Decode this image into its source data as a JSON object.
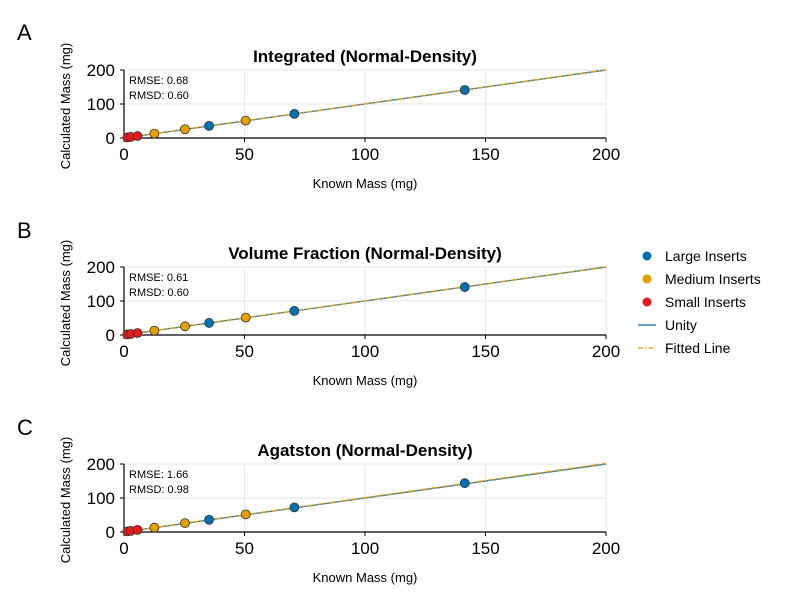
{
  "panels": [
    "A",
    "B",
    "C"
  ],
  "colors": {
    "large": "#0072b2",
    "medium": "#e69f00",
    "small": "#e41a1c",
    "unity": "#2c7fb8",
    "fitted": "#e69f00",
    "grid": "#e6e6e6",
    "axis": "#000000"
  },
  "legend": {
    "position": "right",
    "items": [
      {
        "label": "Large Inserts",
        "kind": "marker",
        "color": "#0072b2"
      },
      {
        "label": "Medium Inserts",
        "kind": "marker",
        "color": "#e69f00"
      },
      {
        "label": "Small Inserts",
        "kind": "marker",
        "color": "#e41a1c"
      },
      {
        "label": "Unity",
        "kind": "line",
        "color": "#2c7fb8"
      },
      {
        "label": "Fitted Line",
        "kind": "dashdot",
        "color": "#e69f00"
      }
    ]
  },
  "chart_data": [
    {
      "type": "scatter",
      "panel": "A",
      "title": "Integrated (Normal-Density)",
      "xlabel": "Known Mass (mg)",
      "ylabel": "Calculated Mass (mg)",
      "xlim": [
        0,
        200
      ],
      "ylim": [
        0,
        200
      ],
      "xticks": [
        0,
        50,
        100,
        150,
        200
      ],
      "yticks": [
        0,
        100,
        200
      ],
      "grid": true,
      "stats": [
        "RMSE: 0.68",
        "RMSD: 0.60"
      ],
      "series": [
        {
          "name": "Large Inserts",
          "x": [
            35.3,
            70.7,
            141.4
          ],
          "y": [
            35.6,
            71.0,
            141.2
          ]
        },
        {
          "name": "Medium Inserts",
          "x": [
            12.6,
            25.3,
            50.5
          ],
          "y": [
            12.8,
            25.8,
            51.0
          ]
        },
        {
          "name": "Small Inserts",
          "x": [
            1.4,
            2.8,
            5.6
          ],
          "y": [
            1.6,
            3.1,
            5.8
          ]
        },
        {
          "name": "Unity",
          "x": [
            0,
            200
          ],
          "y": [
            0,
            200
          ]
        },
        {
          "name": "Fitted Line",
          "x": [
            0,
            200
          ],
          "y": [
            0.2,
            200.4
          ]
        }
      ]
    },
    {
      "type": "scatter",
      "panel": "B",
      "title": "Volume Fraction (Normal-Density)",
      "xlabel": "Known Mass (mg)",
      "ylabel": "Calculated Mass (mg)",
      "xlim": [
        0,
        200
      ],
      "ylim": [
        0,
        200
      ],
      "xticks": [
        0,
        50,
        100,
        150,
        200
      ],
      "yticks": [
        0,
        100,
        200
      ],
      "grid": true,
      "stats": [
        "RMSE: 0.61",
        "RMSD: 0.60"
      ],
      "series": [
        {
          "name": "Large Inserts",
          "x": [
            35.3,
            70.7,
            141.4
          ],
          "y": [
            35.5,
            70.9,
            141.0
          ]
        },
        {
          "name": "Medium Inserts",
          "x": [
            12.6,
            25.3,
            50.5
          ],
          "y": [
            12.9,
            25.6,
            51.1
          ]
        },
        {
          "name": "Small Inserts",
          "x": [
            1.4,
            2.8,
            5.6
          ],
          "y": [
            1.7,
            3.0,
            5.9
          ]
        },
        {
          "name": "Unity",
          "x": [
            0,
            200
          ],
          "y": [
            0,
            200
          ]
        },
        {
          "name": "Fitted Line",
          "x": [
            0,
            200
          ],
          "y": [
            0.1,
            200.3
          ]
        }
      ]
    },
    {
      "type": "scatter",
      "panel": "C",
      "title": "Agatston (Normal-Density)",
      "xlabel": "Known Mass (mg)",
      "ylabel": "Calculated Mass (mg)",
      "xlim": [
        0,
        200
      ],
      "ylim": [
        0,
        200
      ],
      "xticks": [
        0,
        50,
        100,
        150,
        200
      ],
      "yticks": [
        0,
        100,
        200
      ],
      "grid": true,
      "stats": [
        "RMSE: 1.66",
        "RMSD: 0.98"
      ],
      "series": [
        {
          "name": "Large Inserts",
          "x": [
            35.3,
            70.7,
            141.4
          ],
          "y": [
            36.0,
            72.5,
            143.5
          ]
        },
        {
          "name": "Medium Inserts",
          "x": [
            12.6,
            25.3,
            50.5
          ],
          "y": [
            13.0,
            26.2,
            51.8
          ]
        },
        {
          "name": "Small Inserts",
          "x": [
            1.4,
            2.8,
            5.6
          ],
          "y": [
            1.9,
            3.3,
            6.2
          ]
        },
        {
          "name": "Unity",
          "x": [
            0,
            200
          ],
          "y": [
            0,
            200
          ]
        },
        {
          "name": "Fitted Line",
          "x": [
            0,
            200
          ],
          "y": [
            0.3,
            201.8
          ]
        }
      ]
    }
  ]
}
